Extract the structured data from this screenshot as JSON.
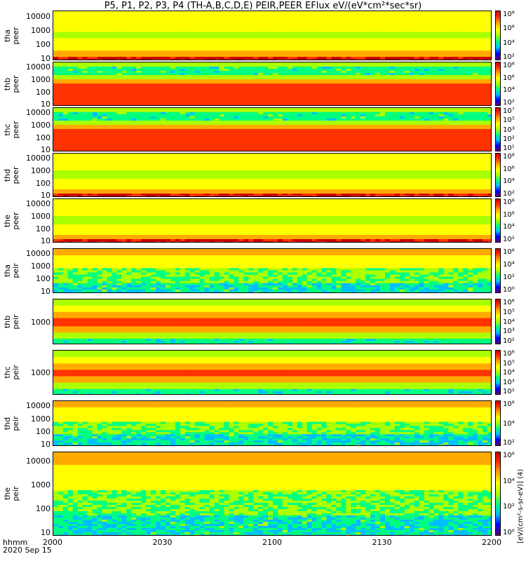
{
  "title": "P5, P1, P2, P3, P4 (TH-A,B,C,D,E) PEIR,PEER EFlux eV/(eV*cm²*sec*sr)",
  "x_axis": {
    "label": "hhmm",
    "date": "2020 Sep 15",
    "ticks": [
      "2000",
      "2030",
      "2100",
      "2130",
      "2200"
    ]
  },
  "colorbar_unit": "[eV/(cm²-s-sr-eV)] (4)",
  "colormap": [
    "#5a0078",
    "#0000ff",
    "#00bfff",
    "#00ff80",
    "#aaff00",
    "#ffff00",
    "#ffaa00",
    "#ff3300",
    "#c80000"
  ],
  "chart_data": [
    {
      "type": "heatmap",
      "probe": "tha",
      "instrument": "peer",
      "ylabel": "tha\npeer",
      "yscale": "log",
      "yticks": [
        "10000",
        "1000",
        "100",
        "10"
      ],
      "ylim": [
        7,
        25000
      ],
      "colorbar_ticks": [
        "10⁸",
        "10⁶",
        "10⁴",
        "10²"
      ]
    },
    {
      "type": "heatmap",
      "probe": "thb",
      "instrument": "peer",
      "ylabel": "thb\npeer",
      "yscale": "log",
      "yticks": [
        "10000",
        "1000",
        "100",
        "10"
      ],
      "ylim": [
        7,
        25000
      ],
      "colorbar_ticks": [
        "10⁸",
        "10⁶",
        "10⁴",
        "10²"
      ]
    },
    {
      "type": "heatmap",
      "probe": "thc",
      "instrument": "peer",
      "ylabel": "thc\npeer",
      "yscale": "log",
      "yticks": [
        "10000",
        "1000",
        "100",
        "10"
      ],
      "ylim": [
        7,
        25000
      ],
      "colorbar_ticks": [
        "10⁷",
        "10⁵",
        "10³",
        "10²",
        "10¹"
      ]
    },
    {
      "type": "heatmap",
      "probe": "thd",
      "instrument": "peer",
      "ylabel": "thd\npeer",
      "yscale": "log",
      "yticks": [
        "10000",
        "1000",
        "100",
        "10"
      ],
      "ylim": [
        7,
        25000
      ],
      "colorbar_ticks": [
        "10⁸",
        "10⁶",
        "10⁴",
        "10²"
      ]
    },
    {
      "type": "heatmap",
      "probe": "the",
      "instrument": "peer",
      "ylabel": "the\npeer",
      "yscale": "log",
      "yticks": [
        "10000",
        "1000",
        "100",
        "10"
      ],
      "ylim": [
        7,
        25000
      ],
      "colorbar_ticks": [
        "10⁸",
        "10⁶",
        "10⁴",
        "10²"
      ]
    },
    {
      "type": "heatmap",
      "probe": "tha",
      "instrument": "peir",
      "ylabel": "tha\npeir",
      "yscale": "log",
      "yticks": [
        "10000",
        "1000",
        "100",
        "10"
      ],
      "ylim": [
        7,
        25000
      ],
      "colorbar_ticks": [
        "10⁶",
        "10⁴",
        "10²",
        "10⁰"
      ]
    },
    {
      "type": "heatmap",
      "probe": "thb",
      "instrument": "peir",
      "ylabel": "thb\npeir",
      "yscale": "log",
      "yticks": [
        "1000"
      ],
      "ylim": [
        100,
        10000
      ],
      "colorbar_ticks": [
        "10⁶",
        "10⁵",
        "10⁴",
        "10³",
        "10²"
      ]
    },
    {
      "type": "heatmap",
      "probe": "thc",
      "instrument": "peir",
      "ylabel": "thc\npeir",
      "yscale": "log",
      "yticks": [
        "1000"
      ],
      "ylim": [
        100,
        10000
      ],
      "colorbar_ticks": [
        "10⁶",
        "10⁵",
        "10⁴",
        "10³",
        "10²"
      ]
    },
    {
      "type": "heatmap",
      "probe": "thd",
      "instrument": "peir",
      "ylabel": "thd\npeir",
      "yscale": "log",
      "yticks": [
        "10000",
        "1000",
        "100",
        "10"
      ],
      "ylim": [
        7,
        25000
      ],
      "colorbar_ticks": [
        "10⁶",
        "10⁴",
        "10²"
      ]
    },
    {
      "type": "heatmap",
      "probe": "the",
      "instrument": "peir",
      "ylabel": "the\npeir",
      "yscale": "log",
      "yticks": [
        "10000",
        "1000",
        "100",
        "10"
      ],
      "ylim": [
        7,
        25000
      ],
      "colorbar_ticks": [
        "10⁶",
        "10⁴",
        "10²",
        "10⁰"
      ]
    }
  ]
}
